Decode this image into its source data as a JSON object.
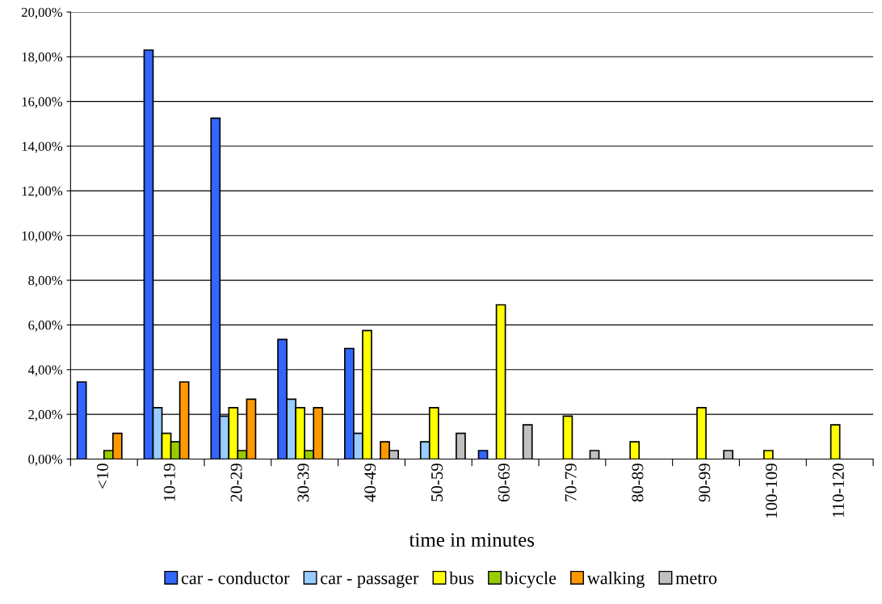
{
  "chart_data": {
    "type": "bar",
    "xlabel": "time in minutes",
    "categories": [
      "<10",
      "10-19",
      "20-29",
      "30-39",
      "40-49",
      "50-59",
      "60-69",
      "70-79",
      "80-89",
      "90-99",
      "100-109",
      "110-120"
    ],
    "series": [
      {
        "name": "car - conductor",
        "color": "#3366ff",
        "values": [
          3.45,
          18.3,
          15.25,
          5.35,
          4.95,
          null,
          0.38,
          null,
          null,
          null,
          null,
          null
        ]
      },
      {
        "name": "car - passager",
        "color": "#99ccff",
        "values": [
          null,
          2.3,
          1.92,
          2.68,
          1.15,
          0.77,
          null,
          null,
          null,
          null,
          null,
          null
        ]
      },
      {
        "name": "bus",
        "color": "#ffff00",
        "values": [
          null,
          1.15,
          2.3,
          2.3,
          5.75,
          2.3,
          6.9,
          1.92,
          0.77,
          2.3,
          0.38,
          1.53
        ]
      },
      {
        "name": "bicycle",
        "color": "#99cc00",
        "values": [
          0.38,
          0.77,
          0.38,
          0.38,
          null,
          null,
          null,
          null,
          null,
          null,
          null,
          null
        ]
      },
      {
        "name": "walking",
        "color": "#ff9900",
        "values": [
          1.15,
          3.45,
          2.68,
          2.3,
          0.77,
          null,
          null,
          null,
          null,
          null,
          null,
          null
        ]
      },
      {
        "name": "metro",
        "color": "#c0c0c0",
        "values": [
          null,
          null,
          null,
          null,
          0.38,
          1.15,
          1.53,
          0.38,
          null,
          0.38,
          null,
          null
        ]
      }
    ],
    "ylim": [
      0,
      20
    ],
    "yticks": [
      {
        "value": 0,
        "label": "0,00%"
      },
      {
        "value": 2,
        "label": "2,00%"
      },
      {
        "value": 4,
        "label": "4,00%"
      },
      {
        "value": 6,
        "label": "6,00%"
      },
      {
        "value": 8,
        "label": "8,00%"
      },
      {
        "value": 10,
        "label": "10,00%"
      },
      {
        "value": 12,
        "label": "12,00%"
      },
      {
        "value": 14,
        "label": "14,00%"
      },
      {
        "value": 16,
        "label": "16,00%"
      },
      {
        "value": 18,
        "label": "18,00%"
      },
      {
        "value": 20,
        "label": "20,00%"
      }
    ],
    "grid": "y",
    "legend": "bottom"
  }
}
